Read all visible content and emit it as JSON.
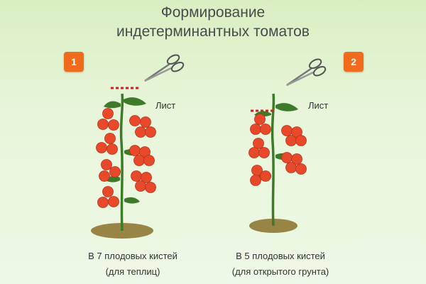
{
  "title": {
    "line1": "Формирование",
    "line2": "индетерминантных томатов"
  },
  "colors": {
    "badge": "#f26a1b",
    "fruit": "#e8492a",
    "stem": "#3d7a2a",
    "cut_marker": "#d11f1f",
    "ground": "#8a7028"
  },
  "panels": [
    {
      "badge": "1",
      "leaf_label": "Лист",
      "caption_line1": "В 7 плодовых кистей",
      "caption_line2": "(для теплиц)",
      "fruit_clusters": 7,
      "icons": [
        "scissors-icon",
        "tomato-plant-icon"
      ]
    },
    {
      "badge": "2",
      "leaf_label": "Лист",
      "caption_line1": "В 5 плодовых кистей",
      "caption_line2": "(для открытого грунта)",
      "fruit_clusters": 5,
      "icons": [
        "scissors-icon",
        "tomato-plant-icon"
      ]
    }
  ]
}
